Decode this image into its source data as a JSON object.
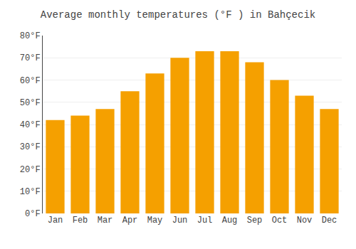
{
  "chart_data": {
    "type": "bar",
    "title": "Average monthly temperatures (°F ) in Bahçecik",
    "categories": [
      "Jan",
      "Feb",
      "Mar",
      "Apr",
      "May",
      "Jun",
      "Jul",
      "Aug",
      "Sep",
      "Oct",
      "Nov",
      "Dec"
    ],
    "values": [
      42,
      44,
      47,
      55,
      63,
      70,
      73,
      73,
      68,
      60,
      53,
      47
    ],
    "color": "#F5A000",
    "ylim": [
      0,
      80
    ],
    "yticks": [
      {
        "value": 0,
        "label": "0°F"
      },
      {
        "value": 10,
        "label": "10°F"
      },
      {
        "value": 20,
        "label": "20°F"
      },
      {
        "value": 30,
        "label": "30°F"
      },
      {
        "value": 40,
        "label": "40°F"
      },
      {
        "value": 50,
        "label": "50°F"
      },
      {
        "value": 60,
        "label": "60°F"
      },
      {
        "value": 70,
        "label": "70°F"
      },
      {
        "value": 80,
        "label": "80°F"
      }
    ],
    "grid": true
  }
}
